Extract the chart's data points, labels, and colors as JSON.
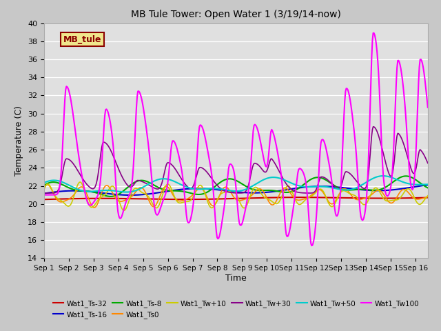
{
  "title": "MB Tule Tower: Open Water 1 (3/19/14-now)",
  "xlabel": "Time",
  "ylabel": "Temperature (C)",
  "ylim": [
    14,
    40
  ],
  "yticks": [
    14,
    16,
    18,
    20,
    22,
    24,
    26,
    28,
    30,
    32,
    34,
    36,
    38,
    40
  ],
  "xlim_days": [
    0,
    15.5
  ],
  "x_tick_labels": [
    "Sep 1",
    "Sep 2",
    "Sep 3",
    "Sep 4",
    "Sep 5",
    "Sep 6",
    "Sep 7",
    "Sep 8",
    "Sep 9",
    "Sep 10",
    "Sep 11",
    "Sep 12",
    "Sep 13",
    "Sep 14",
    "Sep 15",
    "Sep 16"
  ],
  "fig_bg_color": "#c8c8c8",
  "plot_bg_color": "#e0e0e0",
  "legend_label": "MB_tule",
  "legend_bg": "#f0e68c",
  "legend_border": "#8b0000",
  "series": [
    {
      "name": "Wat1_Ts-32",
      "color": "#cc0000"
    },
    {
      "name": "Wat1_Ts-16",
      "color": "#0000cc"
    },
    {
      "name": "Wat1_Ts-8",
      "color": "#00aa00"
    },
    {
      "name": "Wat1_Ts0",
      "color": "#ff8800"
    },
    {
      "name": "Wat1_Tw+10",
      "color": "#cccc00"
    },
    {
      "name": "Wat1_Tw+30",
      "color": "#880088"
    },
    {
      "name": "Wat1_Tw+50",
      "color": "#00cccc"
    },
    {
      "name": "Wat1_Tw100",
      "color": "#ff00ff"
    }
  ]
}
